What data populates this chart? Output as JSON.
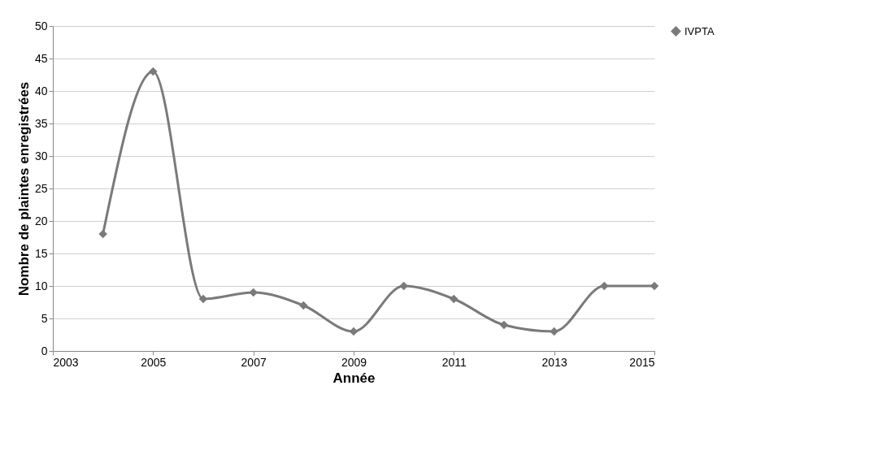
{
  "chart_data": {
    "type": "line",
    "xlabel": "Année",
    "ylabel": "Nombre de plaintes enregistrées",
    "x": [
      2004,
      2005,
      2006,
      2007,
      2008,
      2009,
      2010,
      2011,
      2012,
      2013,
      2014,
      2015
    ],
    "series": [
      {
        "name": "IVPTA",
        "color": "#7a7a7a",
        "values": [
          18,
          43,
          8,
          9,
          7,
          3,
          10,
          8,
          4,
          3,
          10,
          10
        ]
      }
    ],
    "xlim": [
      2003,
      2015
    ],
    "xticks": [
      2003,
      2005,
      2007,
      2009,
      2011,
      2013,
      2015
    ],
    "ylim": [
      0,
      50
    ],
    "yticks": [
      0,
      5,
      10,
      15,
      20,
      25,
      30,
      35,
      40,
      45,
      50
    ],
    "grid": "y",
    "legend": "right",
    "marker": "diamond",
    "line_style": "solid"
  }
}
